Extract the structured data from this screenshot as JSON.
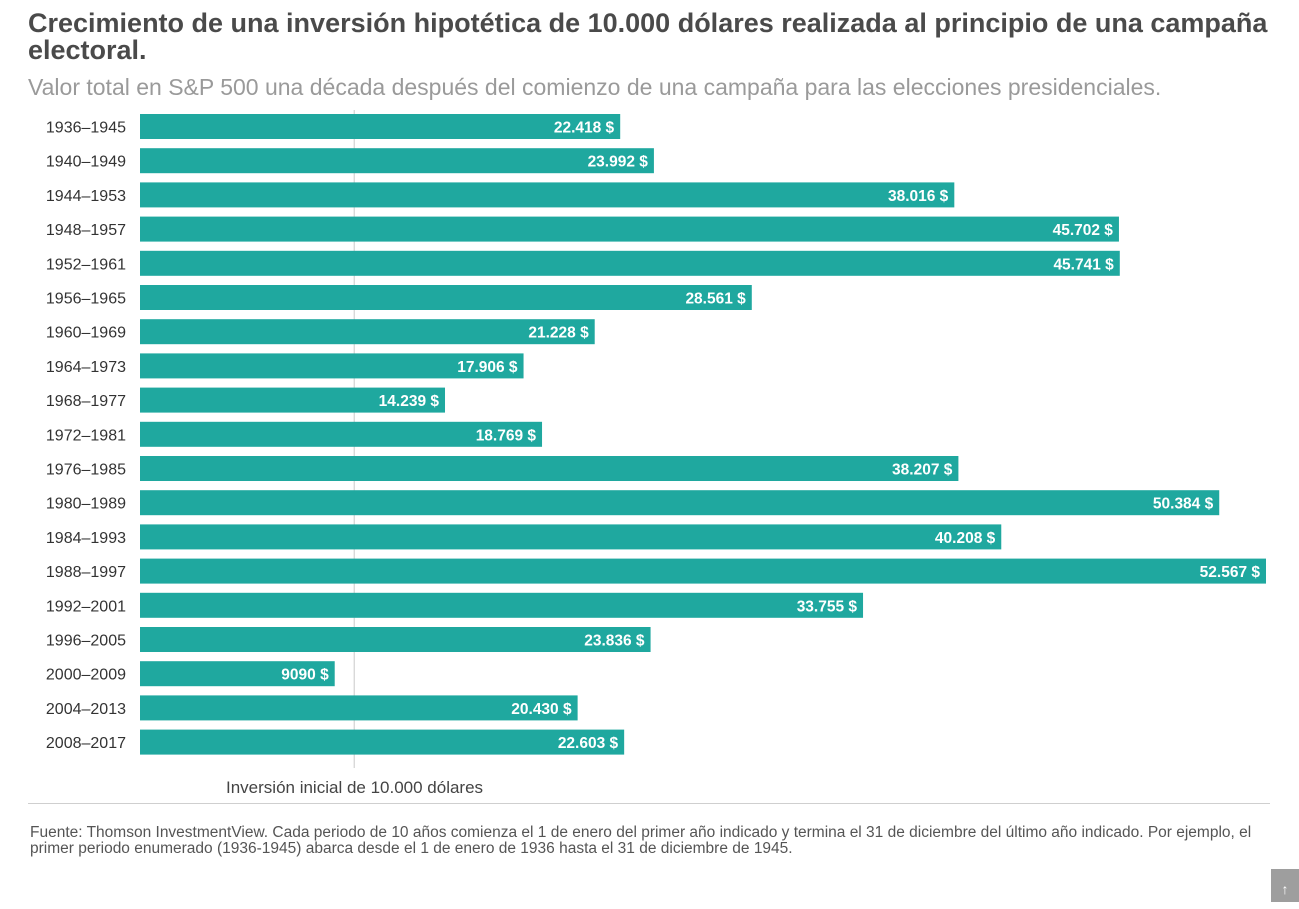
{
  "chart_data": {
    "type": "bar",
    "orientation": "horizontal",
    "title": "Crecimiento de una inversión hipotética de 10.000 dólares realizada al principio de una campaña electoral.",
    "subtitle": "Valor total en S&P 500 una década después del comienzo de una campaña para las elecciones presidenciales.",
    "categories": [
      "1936–1945",
      "1940–1949",
      "1944–1953",
      "1948–1957",
      "1952–1961",
      "1956–1965",
      "1960–1969",
      "1964–1973",
      "1968–1977",
      "1972–1981",
      "1976–1985",
      "1980–1989",
      "1984–1993",
      "1988–1997",
      "1992–2001",
      "1996–2005",
      "2000–2009",
      "2004–2013",
      "2008–2017"
    ],
    "values": [
      22418,
      23992,
      38016,
      45702,
      45741,
      28561,
      21228,
      17906,
      14239,
      18769,
      38207,
      50384,
      40208,
      52567,
      33755,
      23836,
      9090,
      20430,
      22603
    ],
    "value_labels": [
      "22.418 $",
      "23.992 $",
      "38.016 $",
      "45.702 $",
      "45.741 $",
      "28.561 $",
      "21.228 $",
      "17.906 $",
      "14.239 $",
      "18.769 $",
      "38.207 $",
      "50.384 $",
      "40.208 $",
      "52.567 $",
      "33.755 $",
      "23.836 $",
      "9090 $",
      "20.430 $",
      "22.603 $"
    ],
    "reference_line": {
      "value": 10000,
      "label": "Inversión inicial de 10.000 dólares"
    },
    "xlim": [
      0,
      52567
    ],
    "bar_color": "#1fa89f",
    "source": "Fuente: Thomson InvestmentView. Cada periodo de 10 años comienza el 1 de enero del primer año indicado y termina el 31 de diciembre del último año indicado. Por ejemplo, el primer periodo enumerado (1936-1945) abarca desde el 1 de enero de 1936 hasta el 31 de diciembre de 1945."
  },
  "ui": {
    "scroll_top_icon": "arrow-up-icon",
    "scroll_top_glyph": "↑"
  }
}
